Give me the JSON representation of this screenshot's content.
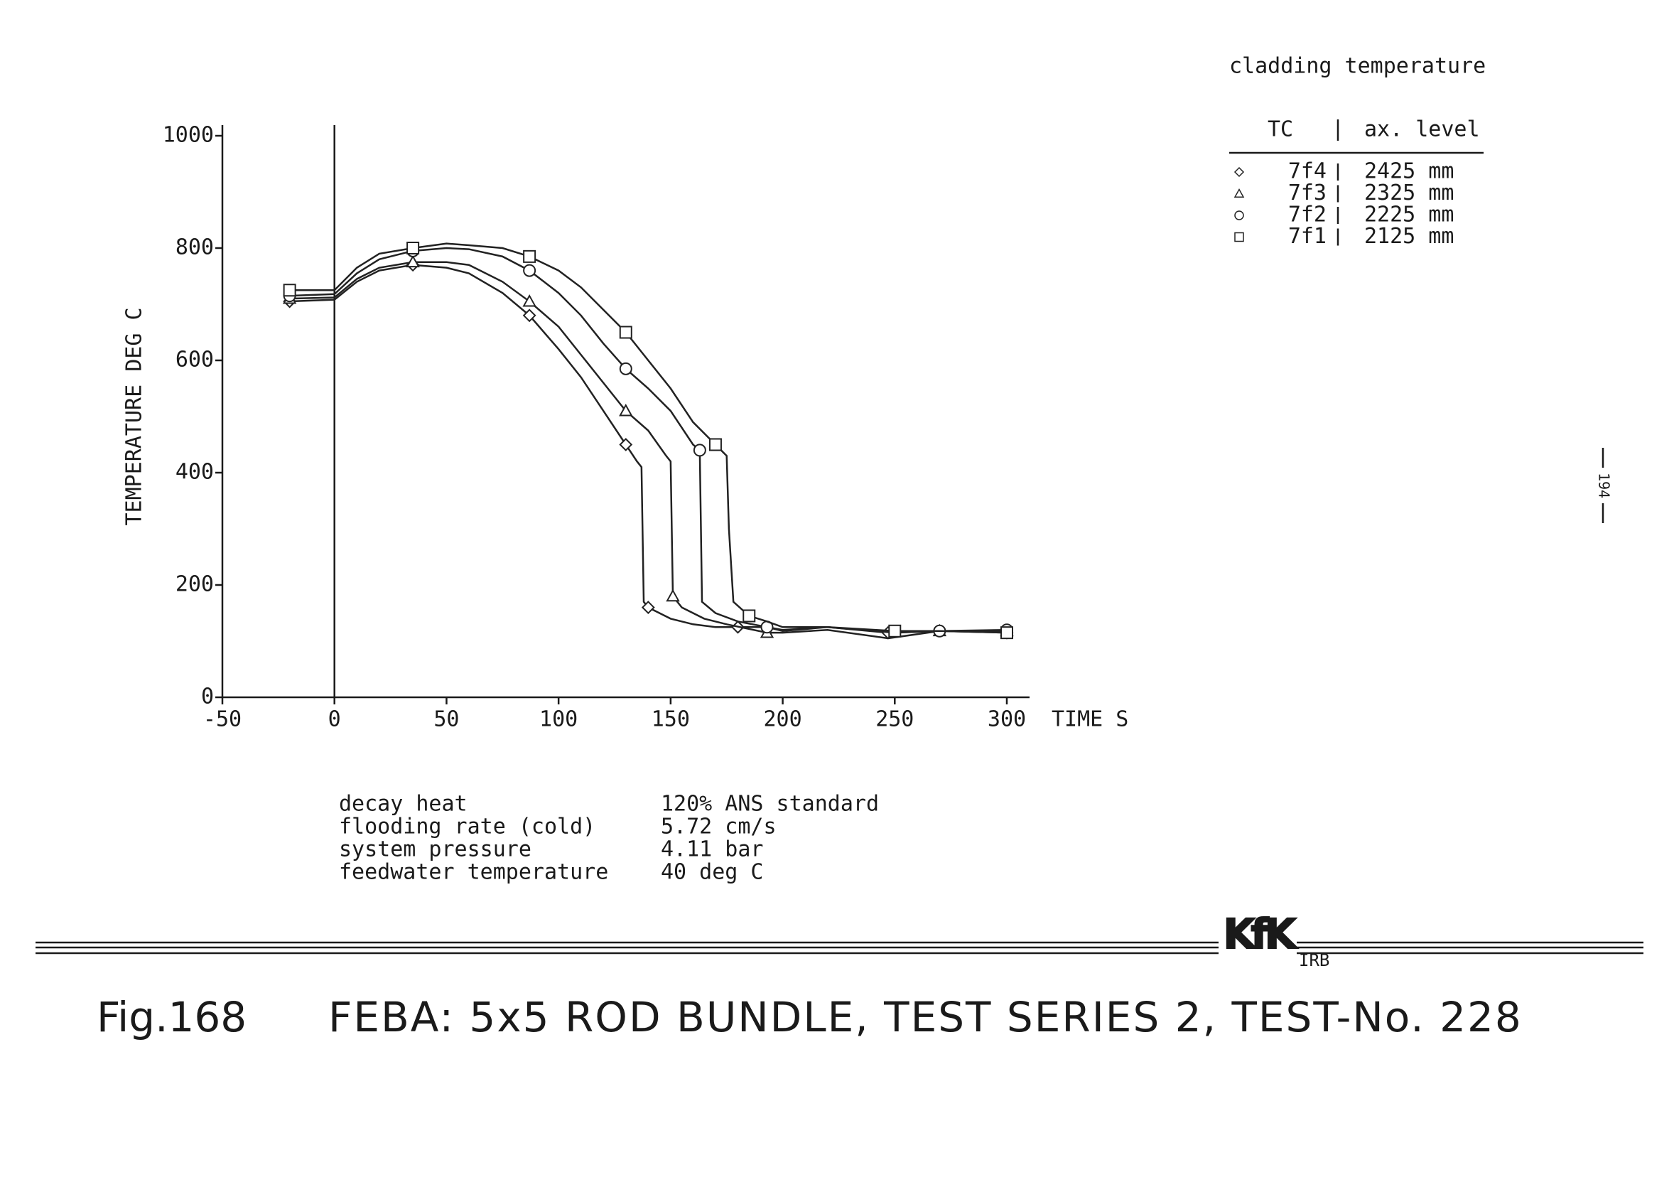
{
  "chart_data": {
    "type": "line",
    "x_label": "TIME S",
    "y_label": "TEMPERATURE DEG C",
    "xlim": [
      -50,
      300
    ],
    "ylim": [
      0,
      1000
    ],
    "xticks": [
      -50,
      0,
      50,
      100,
      150,
      200,
      250,
      300
    ],
    "yticks": [
      0,
      200,
      400,
      600,
      800,
      1000
    ],
    "legend_title": "cladding temperature",
    "legend_headers": [
      "TC",
      "ax. level"
    ],
    "color": "#222222",
    "series": [
      {
        "name": "7f4",
        "level": "2425 mm",
        "marker": "diamond",
        "x": [
          -20,
          0,
          10,
          20,
          35,
          50,
          60,
          75,
          87,
          100,
          110,
          120,
          130,
          135,
          137,
          138,
          140,
          150,
          160,
          170,
          180,
          193,
          200,
          220,
          247,
          270,
          300
        ],
        "values": [
          705,
          708,
          740,
          760,
          770,
          765,
          755,
          720,
          680,
          620,
          570,
          510,
          450,
          420,
          410,
          170,
          160,
          140,
          130,
          125,
          125,
          125,
          118,
          125,
          115,
          118,
          115
        ]
      },
      {
        "name": "7f3",
        "level": "2325 mm",
        "marker": "triangle",
        "x": [
          -20,
          0,
          10,
          20,
          35,
          50,
          60,
          75,
          87,
          100,
          110,
          120,
          130,
          140,
          148,
          150,
          151,
          155,
          165,
          175,
          193,
          200,
          220,
          247,
          270,
          300
        ],
        "values": [
          710,
          712,
          745,
          765,
          775,
          775,
          770,
          740,
          705,
          660,
          610,
          560,
          510,
          475,
          430,
          420,
          180,
          160,
          140,
          130,
          115,
          115,
          120,
          105,
          118,
          118
        ]
      },
      {
        "name": "7f2",
        "level": "2225 mm",
        "marker": "circle",
        "x": [
          -20,
          0,
          10,
          20,
          35,
          50,
          60,
          75,
          87,
          100,
          110,
          120,
          130,
          140,
          150,
          160,
          163,
          164,
          170,
          180,
          193,
          200,
          220,
          250,
          270,
          300
        ],
        "values": [
          715,
          718,
          755,
          780,
          795,
          800,
          798,
          785,
          760,
          720,
          680,
          630,
          585,
          550,
          510,
          450,
          440,
          170,
          150,
          135,
          125,
          120,
          125,
          115,
          118,
          120
        ]
      },
      {
        "name": "7f1",
        "level": "2125 mm",
        "marker": "square",
        "x": [
          -20,
          0,
          10,
          20,
          35,
          50,
          60,
          75,
          87,
          100,
          110,
          120,
          130,
          140,
          150,
          160,
          170,
          175,
          176,
          178,
          185,
          193,
          200,
          220,
          250,
          270,
          300
        ],
        "values": [
          725,
          725,
          765,
          790,
          800,
          808,
          805,
          800,
          785,
          760,
          730,
          690,
          650,
          600,
          550,
          490,
          450,
          430,
          300,
          170,
          145,
          135,
          125,
          125,
          118,
          118,
          115
        ]
      }
    ]
  },
  "conditions": [
    [
      "decay heat",
      "120% ANS standard"
    ],
    [
      "flooding rate (cold)",
      "5.72 cm/s"
    ],
    [
      "system pressure",
      "4.11 bar"
    ],
    [
      "feedwater temperature",
      "40 deg C"
    ]
  ],
  "logo": {
    "main": "KfK",
    "sub": "IRB"
  },
  "caption": {
    "figure": "Fig.168",
    "title": "FEBA: 5x5 ROD BUNDLE, TEST SERIES 2, TEST-No. 228"
  },
  "page_number": "194"
}
